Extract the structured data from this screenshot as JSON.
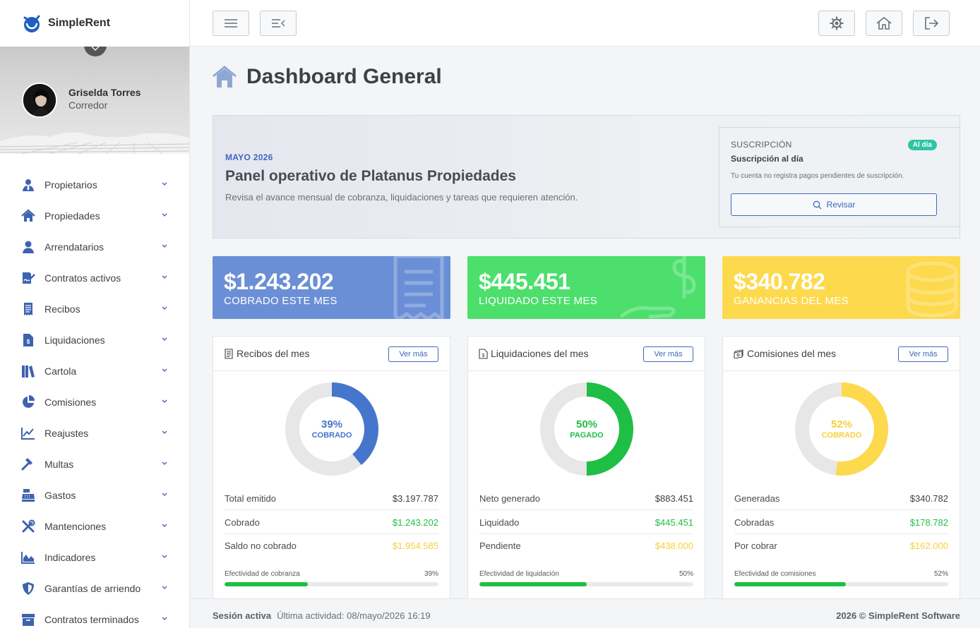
{
  "app": {
    "name": "SimpleRent"
  },
  "user": {
    "name": "Griselda Torres",
    "role": "Corredor"
  },
  "sidebar": {
    "items": [
      {
        "label": "Propietarios",
        "icon": "user-tie-icon"
      },
      {
        "label": "Propiedades",
        "icon": "home-icon"
      },
      {
        "label": "Arrendatarios",
        "icon": "user-icon"
      },
      {
        "label": "Contratos activos",
        "icon": "file-signature-icon"
      },
      {
        "label": "Recibos",
        "icon": "receipt-icon"
      },
      {
        "label": "Liquidaciones",
        "icon": "file-invoice-dollar-icon"
      },
      {
        "label": "Cartola",
        "icon": "book-icon"
      },
      {
        "label": "Comisiones",
        "icon": "pie-chart-icon"
      },
      {
        "label": "Reajustes",
        "icon": "chart-line-icon"
      },
      {
        "label": "Multas",
        "icon": "gavel-icon"
      },
      {
        "label": "Gastos",
        "icon": "cash-register-icon"
      },
      {
        "label": "Mantenciones",
        "icon": "tools-icon"
      },
      {
        "label": "Indicadores",
        "icon": "chart-area-icon"
      },
      {
        "label": "Garantías de arriendo",
        "icon": "shield-icon"
      },
      {
        "label": "Contratos terminados",
        "icon": "archive-icon"
      }
    ]
  },
  "page": {
    "title": "Dashboard General"
  },
  "banner": {
    "month": "MAYO 2026",
    "title": "Panel operativo de Platanus Propiedades",
    "description": "Revisa el avance mensual de cobranza, liquidaciones y tareas que requieren atención.",
    "subscription": {
      "label": "SUSCRIPCIÓN",
      "badge": "Al día",
      "title": "Suscripción al día",
      "description": "Tu cuenta no registra pagos pendientes de suscripción.",
      "button": "Revisar"
    }
  },
  "stats": [
    {
      "value": "$1.243.202",
      "label": "COBRADO ESTE MES",
      "color": "#6b8fd6"
    },
    {
      "value": "$445.451",
      "label": "LIQUIDADO ESTE MES",
      "color": "#4cdf6c"
    },
    {
      "value": "$340.782",
      "label": "GANANCIAS DEL MES",
      "color": "#fdd94e"
    }
  ],
  "cards": [
    {
      "title": "Recibos del mes",
      "button": "Ver más",
      "percent": 39,
      "percent_text": "39%",
      "caption": "COBRADO",
      "color": "#4675cc",
      "rows": [
        {
          "label": "Total emitido",
          "value": "$3.197.787"
        },
        {
          "label": "Cobrado",
          "value": "$1.243.202"
        },
        {
          "label": "Saldo no cobrado",
          "value": "$1.954.585"
        }
      ],
      "progress_label": "Efectividad de cobranza",
      "progress_text": "39%",
      "progress": 0.39
    },
    {
      "title": "Liquidaciones del mes",
      "button": "Ver más",
      "percent": 50,
      "percent_text": "50%",
      "caption": "PAGADO",
      "color": "#1fbf45",
      "rows": [
        {
          "label": "Neto generado",
          "value": "$883.451"
        },
        {
          "label": "Liquidado",
          "value": "$445.451"
        },
        {
          "label": "Pendiente",
          "value": "$438.000"
        }
      ],
      "progress_label": "Efectividad de liquidación",
      "progress_text": "50%",
      "progress": 0.5
    },
    {
      "title": "Comisiones del mes",
      "button": "Ver más",
      "percent": 52,
      "percent_text": "52%",
      "caption": "COBRADO",
      "color": "#fdd94e",
      "rows": [
        {
          "label": "Generadas",
          "value": "$340.782"
        },
        {
          "label": "Cobradas",
          "value": "$178.782"
        },
        {
          "label": "Por cobrar",
          "value": "$162.000"
        }
      ],
      "progress_label": "Efectividad de comisiones",
      "progress_text": "52%",
      "progress": 0.52
    }
  ],
  "colors": {
    "green": "#1fbf45",
    "yellow": "#fdd94e",
    "blue": "#3f68b8"
  },
  "footer": {
    "session": "Sesión activa",
    "activity": "Última actividad: 08/mayo/2026 16:19",
    "copyright": "2026 © SimpleRent Software"
  }
}
